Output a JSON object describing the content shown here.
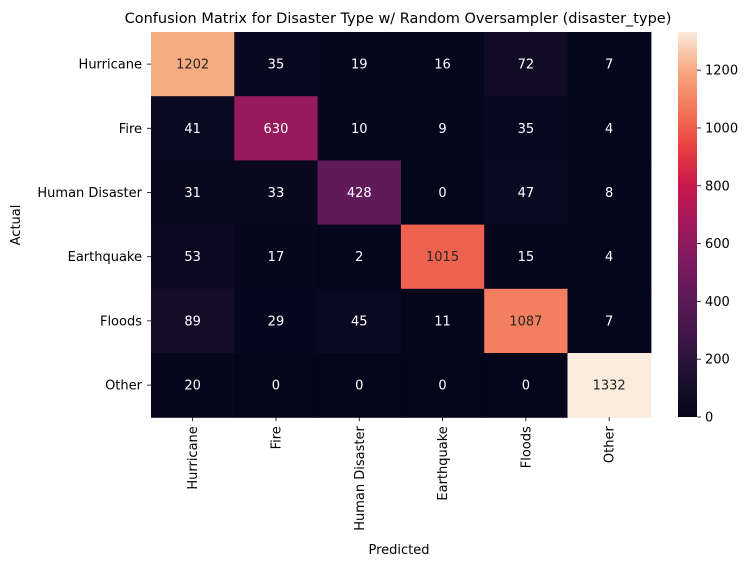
{
  "chart_data": {
    "type": "heatmap",
    "title": "Confusion Matrix for Disaster Type w/ Random Oversampler (disaster_type)",
    "xlabel": "Predicted",
    "ylabel": "Actual",
    "x_categories": [
      "Hurricane",
      "Fire",
      "Human Disaster",
      "Earthquake",
      "Floods",
      "Other"
    ],
    "y_categories": [
      "Hurricane",
      "Fire",
      "Human Disaster",
      "Earthquake",
      "Floods",
      "Other"
    ],
    "values": [
      [
        1202,
        35,
        19,
        16,
        72,
        7
      ],
      [
        41,
        630,
        10,
        9,
        35,
        4
      ],
      [
        31,
        33,
        428,
        0,
        47,
        8
      ],
      [
        53,
        17,
        2,
        1015,
        15,
        4
      ],
      [
        89,
        29,
        45,
        11,
        1087,
        7
      ],
      [
        20,
        0,
        0,
        0,
        0,
        1332
      ]
    ],
    "colormap": "rocket",
    "colorbar": {
      "range": [
        0,
        1332
      ],
      "ticks": [
        0,
        200,
        400,
        600,
        800,
        1000,
        1200
      ]
    }
  }
}
